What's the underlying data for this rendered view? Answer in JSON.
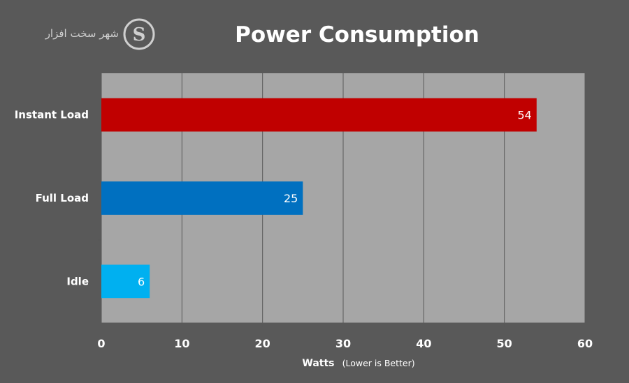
{
  "logo": {
    "text": "شهر سخت افزار",
    "letter": "S"
  },
  "chart_data": {
    "type": "bar",
    "orientation": "horizontal",
    "title": "Power Consumption",
    "categories": [
      "Instant Load",
      "Full Load",
      "Idle"
    ],
    "values": [
      54,
      25,
      6
    ],
    "colors": [
      "#c00000",
      "#0070c0",
      "#00b0f0"
    ],
    "xlabel": "Watts",
    "xlabel_note": "(Lower is Better)",
    "xlim": [
      0,
      60
    ],
    "xticks": [
      0,
      10,
      20,
      30,
      40,
      50,
      60
    ],
    "grid": true,
    "legend": false,
    "data_labels": [
      "54",
      "25",
      "6"
    ]
  },
  "colors": {
    "background": "#595959",
    "plot_area": "#a6a6a6",
    "gridline": "#595959",
    "text": "#ffffff"
  }
}
